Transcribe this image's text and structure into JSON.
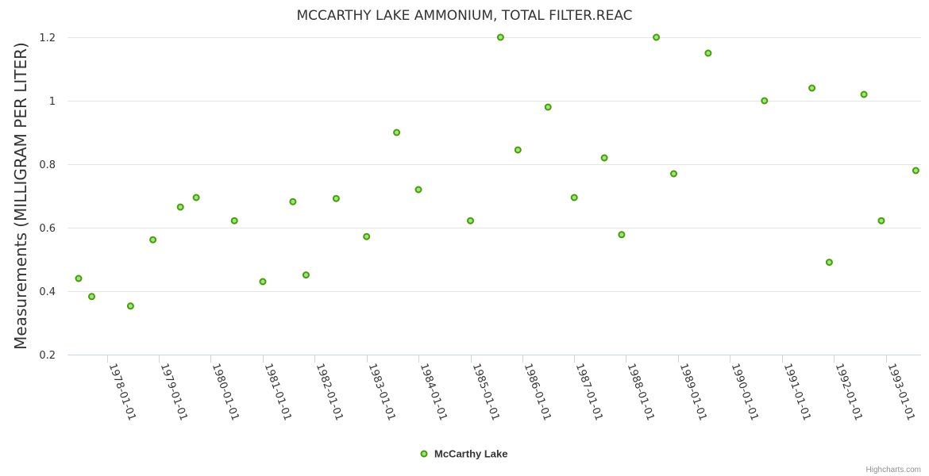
{
  "chart_data": {
    "type": "scatter",
    "title": "MCCARTHY LAKE AMMONIUM, TOTAL FILTER.REAC",
    "xlabel": "",
    "ylabel": "Measurements (MILLIGRAM PER LITER)",
    "ylim": [
      0.2,
      1.2
    ],
    "yticks": [
      "0.2",
      "0.4",
      "0.6",
      "0.8",
      "1",
      "1.2"
    ],
    "xticks": [
      "1978-01-01",
      "1979-01-01",
      "1980-01-01",
      "1981-01-01",
      "1982-01-01",
      "1983-01-01",
      "1984-01-01",
      "1985-01-01",
      "1986-01-01",
      "1987-01-01",
      "1988-01-01",
      "1989-01-01",
      "1990-01-01",
      "1991-01-01",
      "1992-01-01",
      "1993-01-01"
    ],
    "grid": true,
    "legend_position": "bottom-center",
    "colors": {
      "marker_fill": "#90ed7d",
      "marker_stroke": "#4e9a06"
    },
    "series": [
      {
        "name": "McCarthy Lake",
        "points": [
          {
            "x": "1977-06-15",
            "y": 0.44
          },
          {
            "x": "1977-09-15",
            "y": 0.383
          },
          {
            "x": "1978-06-15",
            "y": 0.353
          },
          {
            "x": "1978-11-20",
            "y": 0.562
          },
          {
            "x": "1979-06-01",
            "y": 0.665
          },
          {
            "x": "1979-09-20",
            "y": 0.695
          },
          {
            "x": "1980-06-15",
            "y": 0.622
          },
          {
            "x": "1981-01-01",
            "y": 0.43
          },
          {
            "x": "1981-08-01",
            "y": 0.682
          },
          {
            "x": "1981-11-01",
            "y": 0.451
          },
          {
            "x": "1982-06-01",
            "y": 0.692
          },
          {
            "x": "1983-01-01",
            "y": 0.572
          },
          {
            "x": "1983-08-01",
            "y": 0.9
          },
          {
            "x": "1984-01-01",
            "y": 0.72
          },
          {
            "x": "1985-01-01",
            "y": 0.622
          },
          {
            "x": "1985-08-01",
            "y": 1.2
          },
          {
            "x": "1985-12-01",
            "y": 0.845
          },
          {
            "x": "1986-07-01",
            "y": 0.98
          },
          {
            "x": "1987-01-01",
            "y": 0.695
          },
          {
            "x": "1987-08-01",
            "y": 0.82
          },
          {
            "x": "1987-12-01",
            "y": 0.578
          },
          {
            "x": "1988-08-01",
            "y": 1.2
          },
          {
            "x": "1988-12-01",
            "y": 0.77
          },
          {
            "x": "1989-08-01",
            "y": 1.15
          },
          {
            "x": "1990-09-01",
            "y": 1.0
          },
          {
            "x": "1991-08-01",
            "y": 1.04
          },
          {
            "x": "1991-12-01",
            "y": 0.491
          },
          {
            "x": "1992-08-01",
            "y": 1.02
          },
          {
            "x": "1992-12-01",
            "y": 0.622
          },
          {
            "x": "1993-08-01",
            "y": 0.78
          }
        ]
      }
    ]
  },
  "credit": "Highcharts.com"
}
